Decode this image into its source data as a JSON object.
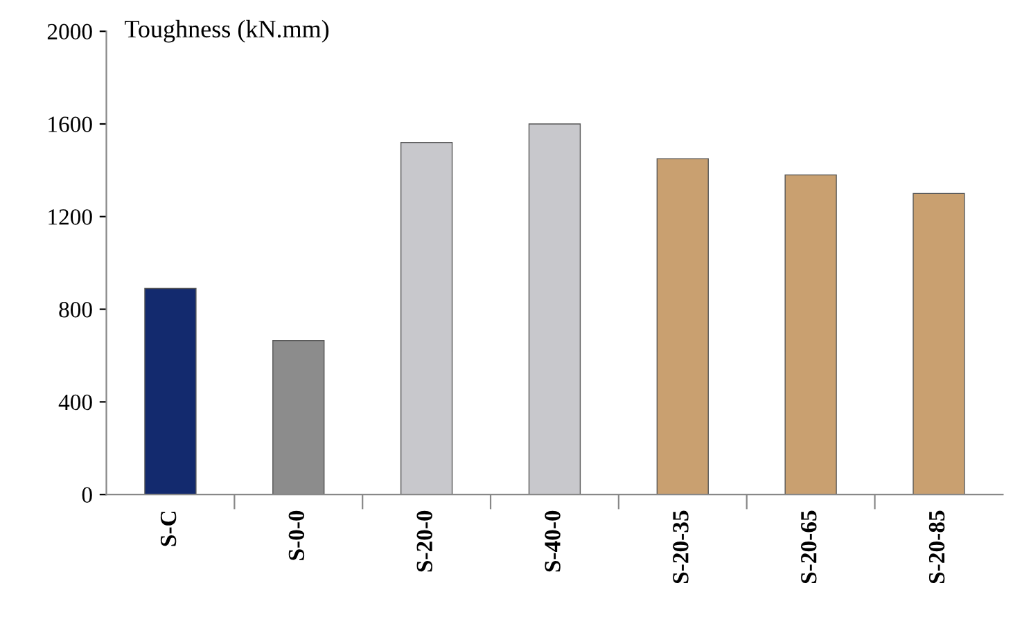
{
  "chart_data": {
    "type": "bar",
    "ylabel": "Toughness (kN.mm)",
    "categories": [
      "S-C",
      "S-0-0",
      "S-20-0",
      "S-40-0",
      "S-20-35",
      "S-20-65",
      "S-20-85"
    ],
    "values": [
      890,
      665,
      1520,
      1600,
      1450,
      1380,
      1300
    ],
    "colors": [
      "#132a6e",
      "#8c8c8c",
      "#c8c8cc",
      "#c8c8cc",
      "#c9a070",
      "#c9a070",
      "#c9a070"
    ],
    "ylim": [
      0,
      2000
    ],
    "yticks": [
      0,
      400,
      800,
      1200,
      1600,
      2000
    ],
    "grid": false
  }
}
